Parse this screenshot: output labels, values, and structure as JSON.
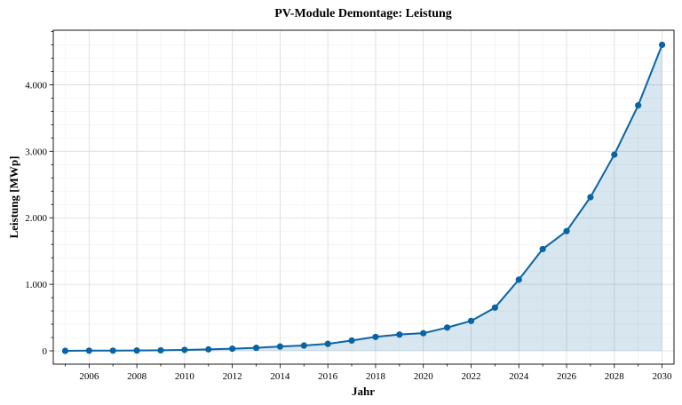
{
  "colors": {
    "line": "#0a64a3",
    "area": "#0a64a3",
    "marker": "#0a64a3"
  },
  "chart_data": {
    "type": "area",
    "title": "PV-Module Demontage: Leistung",
    "xlabel": "Jahr",
    "ylabel": "Leistung [MWp]",
    "xlim": [
      2004.5,
      2030.5
    ],
    "ylim": [
      -200,
      4820
    ],
    "grid": true,
    "x_ticks": [
      2006,
      2008,
      2010,
      2012,
      2014,
      2016,
      2018,
      2020,
      2022,
      2024,
      2026,
      2028,
      2030
    ],
    "x_tick_labels": [
      "2006",
      "2008",
      "2010",
      "2012",
      "2014",
      "2016",
      "2018",
      "2020",
      "2022",
      "2024",
      "2026",
      "2028",
      "2030"
    ],
    "y_ticks": [
      0,
      1000,
      2000,
      3000,
      4000
    ],
    "y_tick_labels": [
      "0",
      "1.000",
      "2.000",
      "3.000",
      "4.000"
    ],
    "series": [
      {
        "x": [
          2005,
          2006,
          2007,
          2008,
          2009,
          2010,
          2011,
          2012,
          2013,
          2014,
          2015,
          2016,
          2017,
          2018,
          2019,
          2020,
          2021,
          2022,
          2023,
          2024,
          2025,
          2026,
          2027,
          2028,
          2029,
          2030
        ],
        "values": [
          0,
          3,
          3,
          5,
          8,
          14,
          22,
          32,
          45,
          65,
          80,
          105,
          155,
          210,
          245,
          265,
          350,
          450,
          650,
          1070,
          1530,
          1800,
          2310,
          2950,
          3690,
          4600
        ]
      }
    ]
  }
}
